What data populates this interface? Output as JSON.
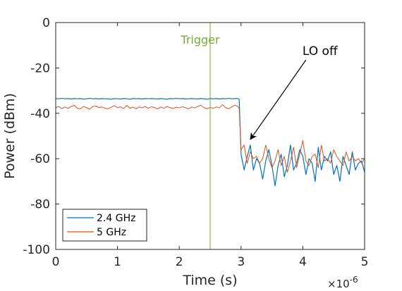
{
  "chart_data": {
    "type": "line",
    "title": "",
    "xlabel": "Time (s)",
    "ylabel": "Power (dBm)",
    "xlim": [
      0,
      5
    ],
    "ylim": [
      -100,
      0
    ],
    "x_multiplier_base": "×10",
    "x_multiplier_exp": "-6",
    "xticks": [
      0,
      1,
      2,
      3,
      4,
      5
    ],
    "xtick_labels": [
      "0",
      "1",
      "2",
      "3",
      "4",
      "5"
    ],
    "yticks": [
      0,
      -20,
      -40,
      -60,
      -80,
      -100
    ],
    "ytick_labels": [
      "0",
      "-20",
      "-40",
      "-60",
      "-80",
      "-100"
    ],
    "grid": false,
    "legend_position": "bottom-left",
    "series": [
      {
        "name": "2.4 GHz",
        "color": "#0072BD",
        "x": [
          0,
          0.05,
          0.1,
          0.15,
          0.2,
          0.25,
          0.3,
          0.35,
          0.4,
          0.45,
          0.5,
          0.55,
          0.6,
          0.65,
          0.7,
          0.75,
          0.8,
          0.85,
          0.9,
          0.95,
          1.0,
          1.05,
          1.1,
          1.15,
          1.2,
          1.25,
          1.3,
          1.35,
          1.4,
          1.45,
          1.5,
          1.55,
          1.6,
          1.65,
          1.7,
          1.75,
          1.8,
          1.85,
          1.9,
          1.95,
          2.0,
          2.05,
          2.1,
          2.15,
          2.2,
          2.25,
          2.3,
          2.35,
          2.4,
          2.45,
          2.5,
          2.55,
          2.6,
          2.65,
          2.7,
          2.75,
          2.8,
          2.85,
          2.9,
          2.95,
          2.97,
          3.0,
          3.05,
          3.1,
          3.15,
          3.2,
          3.25,
          3.3,
          3.35,
          3.4,
          3.45,
          3.5,
          3.55,
          3.6,
          3.65,
          3.7,
          3.75,
          3.8,
          3.85,
          3.9,
          3.95,
          4.0,
          4.05,
          4.1,
          4.15,
          4.2,
          4.25,
          4.3,
          4.35,
          4.4,
          4.45,
          4.5,
          4.55,
          4.6,
          4.65,
          4.7,
          4.75,
          4.8,
          4.85,
          4.9,
          4.95,
          5.0
        ],
        "values": [
          -33.5,
          -33.6,
          -33.4,
          -33.6,
          -33.5,
          -33.7,
          -33.5,
          -33.6,
          -33.5,
          -33.8,
          -33.6,
          -33.4,
          -33.6,
          -33.5,
          -33.7,
          -33.5,
          -33.6,
          -33.6,
          -33.8,
          -33.5,
          -33.6,
          -33.7,
          -33.5,
          -33.6,
          -33.8,
          -33.5,
          -33.6,
          -33.5,
          -33.7,
          -33.5,
          -33.6,
          -33.5,
          -33.6,
          -33.7,
          -33.5,
          -33.6,
          -33.8,
          -33.5,
          -33.6,
          -33.4,
          -33.6,
          -33.5,
          -33.7,
          -33.6,
          -33.5,
          -33.6,
          -33.7,
          -33.5,
          -33.6,
          -33.8,
          -33.5,
          -33.6,
          -33.5,
          -33.7,
          -33.5,
          -33.6,
          -33.4,
          -33.6,
          -33.5,
          -33.5,
          -33.8,
          -58,
          -65,
          -59,
          -54,
          -65,
          -60,
          -62,
          -69,
          -61,
          -56,
          -63,
          -72,
          -63,
          -58,
          -68,
          -63,
          -54,
          -65,
          -62,
          -56,
          -59,
          -67,
          -60,
          -62,
          -70,
          -55,
          -65,
          -59,
          -61,
          -57,
          -67,
          -63,
          -70,
          -59,
          -63,
          -67,
          -57,
          -65,
          -62,
          -61,
          -66
        ],
        "width": 1.2
      },
      {
        "name": "5 GHz",
        "color": "#D95319",
        "x": [
          0,
          0.05,
          0.1,
          0.15,
          0.2,
          0.25,
          0.3,
          0.35,
          0.4,
          0.45,
          0.5,
          0.55,
          0.6,
          0.65,
          0.7,
          0.75,
          0.8,
          0.85,
          0.9,
          0.95,
          1.0,
          1.05,
          1.1,
          1.15,
          1.2,
          1.25,
          1.3,
          1.35,
          1.4,
          1.45,
          1.5,
          1.55,
          1.6,
          1.65,
          1.7,
          1.75,
          1.8,
          1.85,
          1.9,
          1.95,
          2.0,
          2.05,
          2.1,
          2.15,
          2.2,
          2.25,
          2.3,
          2.35,
          2.4,
          2.45,
          2.5,
          2.55,
          2.6,
          2.65,
          2.7,
          2.75,
          2.8,
          2.85,
          2.9,
          2.95,
          2.97,
          3.0,
          3.05,
          3.1,
          3.15,
          3.2,
          3.25,
          3.3,
          3.35,
          3.4,
          3.45,
          3.5,
          3.55,
          3.6,
          3.65,
          3.7,
          3.75,
          3.8,
          3.85,
          3.9,
          3.95,
          4.0,
          4.05,
          4.1,
          4.15,
          4.2,
          4.25,
          4.3,
          4.35,
          4.4,
          4.45,
          4.5,
          4.55,
          4.6,
          4.65,
          4.7,
          4.75,
          4.8,
          4.85,
          4.9,
          4.95,
          5.0
        ],
        "values": [
          -37.5,
          -37,
          -38,
          -37.2,
          -37.8,
          -37,
          -36.5,
          -37.8,
          -38,
          -37,
          -37.5,
          -38.2,
          -37,
          -36.8,
          -37.5,
          -37.2,
          -37.8,
          -38,
          -37.3,
          -36.6,
          -37.5,
          -37.2,
          -37.9,
          -36.5,
          -37.8,
          -37.3,
          -38,
          -37.2,
          -37.6,
          -37.0,
          -37.8,
          -37.1,
          -37.5,
          -38.1,
          -37.2,
          -37.8,
          -37.0,
          -37.5,
          -37.9,
          -37.3,
          -37.6,
          -37.1,
          -37.5,
          -38.0,
          -37.2,
          -37.6,
          -37.0,
          -36.5,
          -37.5,
          -38.0,
          -37.4,
          -37.8,
          -37.2,
          -37.6,
          -36.2,
          -37.5,
          -38.0,
          -37.2,
          -36.4,
          -37.0,
          -38.0,
          -56,
          -54,
          -62,
          -57,
          -60,
          -59,
          -62,
          -60,
          -54,
          -60,
          -64,
          -61,
          -56,
          -63,
          -59,
          -66,
          -61,
          -55,
          -64,
          -58,
          -52,
          -61,
          -63,
          -59,
          -58,
          -64,
          -54,
          -61,
          -60,
          -62,
          -56,
          -59,
          -61,
          -63,
          -57,
          -61,
          -59,
          -61,
          -60,
          -62,
          -60
        ],
        "width": 1.0
      }
    ],
    "reference_line": {
      "x": 2.5,
      "label": "Trigger",
      "color": "#77AC30"
    },
    "annotations": [
      {
        "text": "LO off",
        "arrow_from": [
          4.05,
          -16.5
        ],
        "arrow_to": [
          3.15,
          -51.5
        ]
      }
    ]
  }
}
